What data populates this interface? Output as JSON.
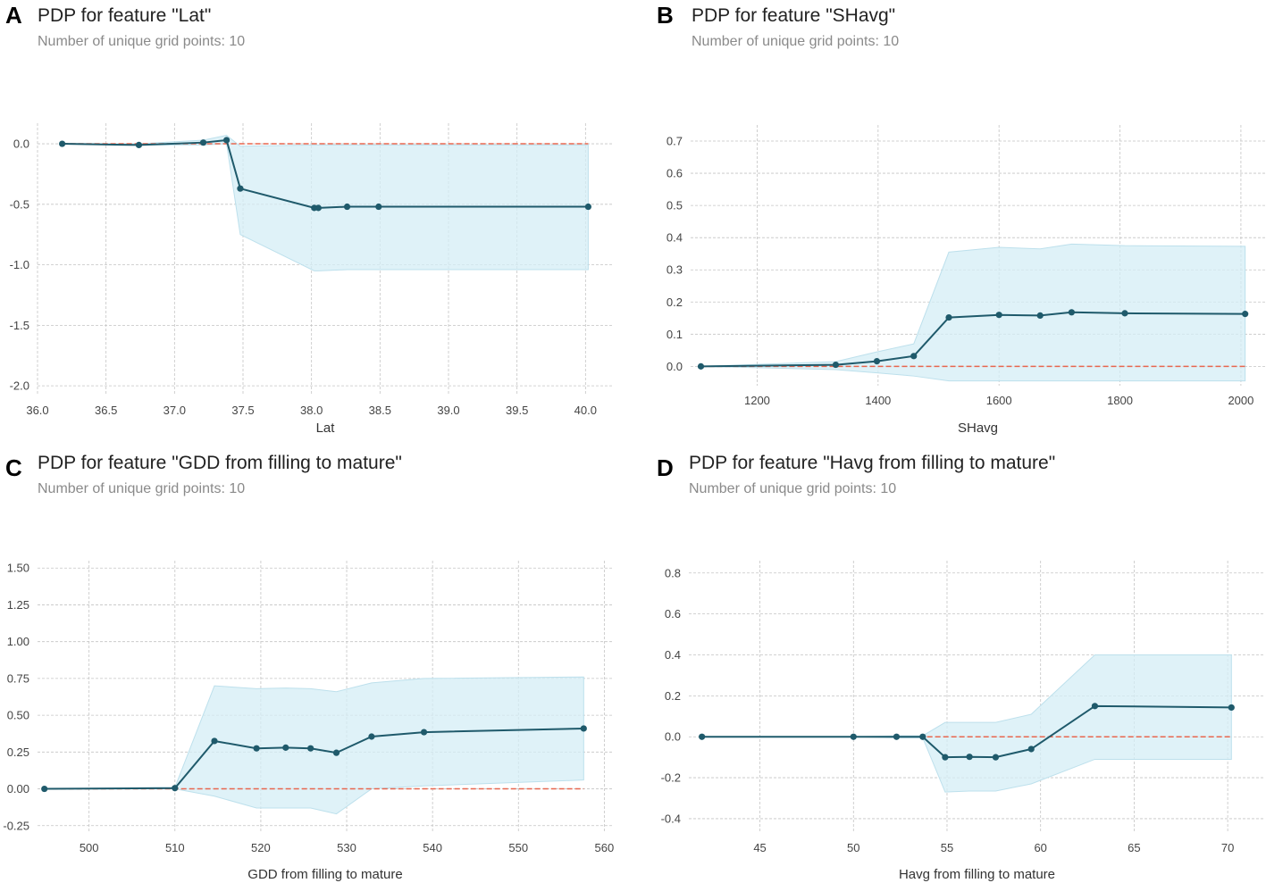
{
  "panels": [
    {
      "letter": "A",
      "title": "PDP for feature \"Lat\"",
      "subtitle": "Number of unique grid points: 10"
    },
    {
      "letter": "B",
      "title": "PDP for feature \"SHavg\"",
      "subtitle": "Number of unique grid points: 10"
    },
    {
      "letter": "C",
      "title": "PDP for feature \"GDD from filling to mature\"",
      "subtitle": "Number of unique grid points: 10"
    },
    {
      "letter": "D",
      "title": "PDP for feature \"Havg from filling to mature\"",
      "subtitle": "Number of unique grid points: 10"
    }
  ],
  "colors": {
    "line": "#1f5a6b",
    "band": "#d4edf5",
    "band_edge": "#bde0ec",
    "zero": "#e8674f",
    "grid": "#c4c4c4",
    "tick": "#444444"
  },
  "chart_data": [
    {
      "type": "line",
      "title": "PDP for feature \"Lat\"",
      "xlabel": "Lat",
      "ylabel": "",
      "xlim": [
        36.0,
        40.2
      ],
      "ylim": [
        -2.08,
        0.17
      ],
      "xticks": [
        36.0,
        36.5,
        37.0,
        37.5,
        38.0,
        38.5,
        39.0,
        39.5,
        40.0
      ],
      "xtick_labels": [
        "36.0",
        "36.5",
        "37.0",
        "37.5",
        "38.0",
        "38.5",
        "39.0",
        "39.5",
        "40.0"
      ],
      "yticks": [
        0.0,
        -0.5,
        -1.0,
        -1.5,
        -2.0
      ],
      "ytick_labels": [
        "0.0",
        "-0.5",
        "-1.0",
        "-1.5",
        "-2.0"
      ],
      "x": [
        36.18,
        36.74,
        37.21,
        37.38,
        37.48,
        38.02,
        38.05,
        38.26,
        38.49,
        40.02
      ],
      "y": [
        0.0,
        -0.01,
        0.01,
        0.03,
        -0.37,
        -0.53,
        -0.53,
        -0.52,
        -0.52,
        -0.52
      ],
      "band_upper": [
        0.0,
        0.0,
        0.03,
        0.07,
        -0.02,
        -0.01,
        -0.01,
        -0.01,
        -0.01,
        -0.01
      ],
      "band_lower": [
        0.0,
        -0.01,
        -0.01,
        0.0,
        -0.75,
        -1.05,
        -1.05,
        -1.04,
        -1.04,
        -1.04
      ],
      "baseline": 0.0
    },
    {
      "type": "line",
      "title": "PDP for feature \"SHavg\"",
      "xlabel": "SHavg",
      "ylabel": "",
      "xlim": [
        1090,
        2040
      ],
      "ylim": [
        -0.06,
        0.75
      ],
      "xticks": [
        1200,
        1400,
        1600,
        1800,
        2000
      ],
      "xtick_labels": [
        "1200",
        "1400",
        "1600",
        "1800",
        "2000"
      ],
      "yticks": [
        0.0,
        0.1,
        0.2,
        0.3,
        0.4,
        0.5,
        0.6,
        0.7
      ],
      "ytick_labels": [
        "0.0",
        "0.1",
        "0.2",
        "0.3",
        "0.4",
        "0.5",
        "0.6",
        "0.7"
      ],
      "x": [
        1107,
        1330,
        1398,
        1459,
        1517,
        1600,
        1668,
        1720,
        1808,
        2007
      ],
      "y": [
        0.0,
        0.005,
        0.016,
        0.032,
        0.152,
        0.16,
        0.158,
        0.168,
        0.165,
        0.163
      ],
      "band_upper": [
        0.0,
        0.015,
        0.045,
        0.07,
        0.355,
        0.37,
        0.365,
        0.38,
        0.375,
        0.373
      ],
      "band_lower": [
        0.0,
        -0.01,
        -0.02,
        -0.03,
        -0.045,
        -0.045,
        -0.045,
        -0.045,
        -0.045,
        -0.045
      ],
      "baseline": 0.0
    },
    {
      "type": "line",
      "title": "PDP for feature \"GDD from filling to mature\"",
      "xlabel": "GDD from filling to mature",
      "ylabel": "",
      "xlim": [
        494,
        561
      ],
      "ylim": [
        -0.3,
        1.55
      ],
      "xticks": [
        500,
        510,
        520,
        530,
        540,
        550,
        560
      ],
      "xtick_labels": [
        "500",
        "510",
        "520",
        "530",
        "540",
        "550",
        "560"
      ],
      "yticks": [
        -0.25,
        0.0,
        0.25,
        0.5,
        0.75,
        1.0,
        1.25,
        1.5
      ],
      "ytick_labels": [
        "-0.25",
        "0.00",
        "0.25",
        "0.50",
        "0.75",
        "1.00",
        "1.25",
        "1.50"
      ],
      "x": [
        494.8,
        510.0,
        514.6,
        519.5,
        522.9,
        525.8,
        528.8,
        532.9,
        539.0,
        557.6
      ],
      "y": [
        0.0,
        0.005,
        0.325,
        0.275,
        0.28,
        0.275,
        0.245,
        0.355,
        0.385,
        0.41
      ],
      "band_upper": [
        0.0,
        0.01,
        0.7,
        0.68,
        0.685,
        0.68,
        0.66,
        0.72,
        0.75,
        0.76
      ],
      "band_lower": [
        0.0,
        0.0,
        -0.05,
        -0.13,
        -0.13,
        -0.13,
        -0.17,
        0.0,
        0.02,
        0.06
      ],
      "baseline": 0.0
    },
    {
      "type": "line",
      "title": "PDP for feature \"Havg from filling to mature\"",
      "xlabel": "Havg from filling to mature",
      "ylabel": "",
      "xlim": [
        41.2,
        72.0
      ],
      "ylim": [
        -0.47,
        0.86
      ],
      "xticks": [
        45,
        50,
        55,
        60,
        65,
        70
      ],
      "xtick_labels": [
        "45",
        "50",
        "55",
        "60",
        "65",
        "70"
      ],
      "yticks": [
        -0.4,
        -0.2,
        0.0,
        0.2,
        0.4,
        0.6,
        0.8
      ],
      "ytick_labels": [
        "-0.4",
        "-0.2",
        "0.0",
        "0.2",
        "0.4",
        "0.6",
        "0.8"
      ],
      "x": [
        41.9,
        50.0,
        52.3,
        53.7,
        54.9,
        56.2,
        57.6,
        59.5,
        62.9,
        70.2
      ],
      "y": [
        0.0,
        0.0,
        0.0,
        0.0,
        -0.1,
        -0.098,
        -0.1,
        -0.06,
        0.15,
        0.143
      ],
      "band_upper": [
        0.0,
        0.0,
        0.005,
        0.005,
        0.07,
        0.07,
        0.07,
        0.11,
        0.4,
        0.4
      ],
      "band_lower": [
        0.0,
        0.0,
        -0.005,
        -0.005,
        -0.27,
        -0.265,
        -0.265,
        -0.23,
        -0.11,
        -0.11
      ],
      "baseline": 0.0
    }
  ]
}
